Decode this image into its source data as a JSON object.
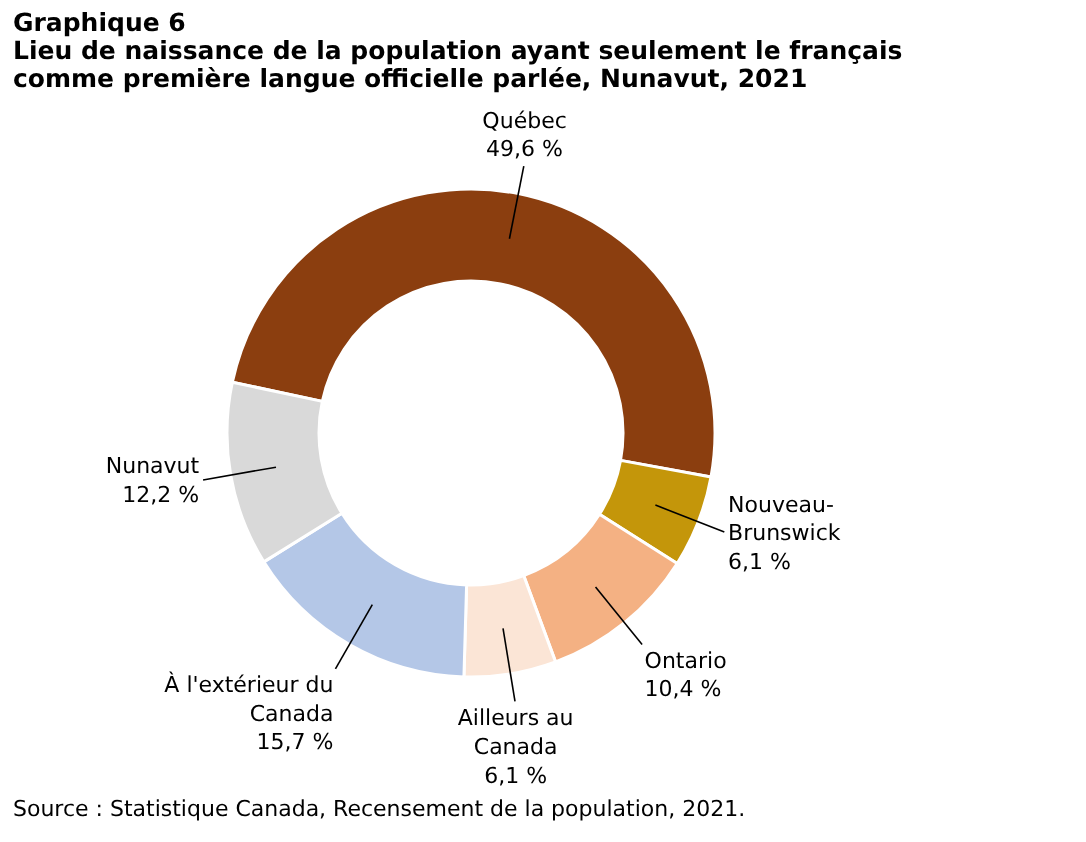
{
  "chart_data": {
    "type": "donut",
    "title": "Graphique 6",
    "subtitle": "Lieu de naissance de la population ayant seulement le français comme première langue officielle parlée, Nunavut, 2021",
    "categories": [
      "Québec",
      "Nouveau-Brunswick",
      "Ontario",
      "Ailleurs au Canada",
      "À l'extérieur du Canada",
      "Nunavut"
    ],
    "values": [
      49.6,
      6.1,
      10.4,
      6.1,
      15.7,
      12.2
    ],
    "value_labels": [
      "49,6 %",
      "6,1 %",
      "10,4 %",
      "6,1 %",
      "15,7 %",
      "12,2 %"
    ],
    "colors": [
      "#8b3e0f",
      "#c4960a",
      "#f4b183",
      "#fbe5d6",
      "#b4c7e7",
      "#d9d9d9"
    ],
    "annotations": [
      "Source : Statistique Canada, Recensement de la population, 2021."
    ]
  }
}
